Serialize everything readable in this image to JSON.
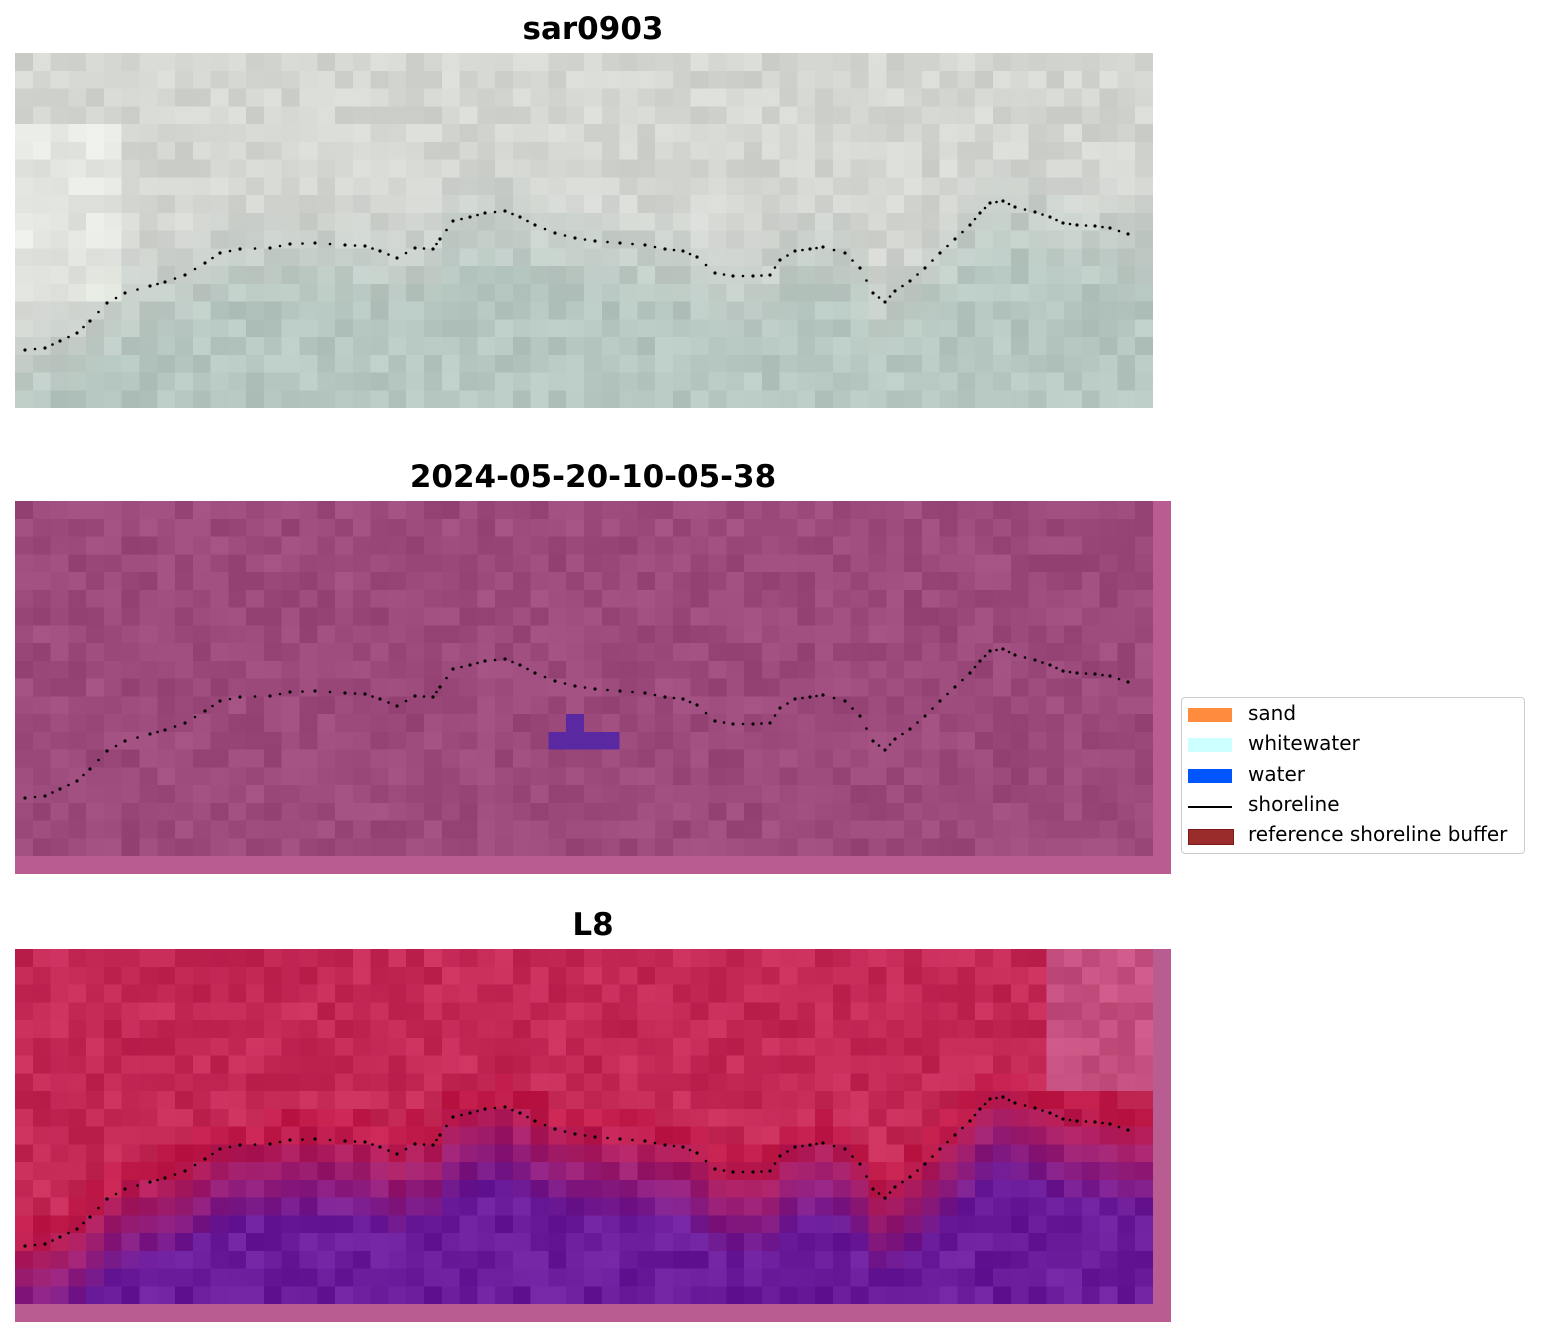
{
  "panels": [
    {
      "title": "sar0903",
      "image_kind": "true-color"
    },
    {
      "title": "2024-05-20-10-05-38",
      "image_kind": "classified-overlay"
    },
    {
      "title": "L8",
      "image_kind": "false-color"
    }
  ],
  "legend": {
    "items": [
      {
        "label": "sand",
        "color": "#ff8c3c",
        "kind": "patch"
      },
      {
        "label": "whitewater",
        "color": "#ccffff",
        "kind": "patch"
      },
      {
        "label": "water",
        "color": "#0055ff",
        "kind": "patch"
      },
      {
        "label": "shoreline",
        "color": "#000000",
        "kind": "line"
      },
      {
        "label": "reference shoreline buffer",
        "color": "#9b2c2c",
        "kind": "patch"
      }
    ]
  },
  "colors": {
    "overlay_background": "#9c4a7c",
    "overlay_border": "#b85c92",
    "false_color_red": "#c21c4a",
    "false_color_purple": "#6a1b9a",
    "true_color_base": "#b6c6c0"
  }
}
